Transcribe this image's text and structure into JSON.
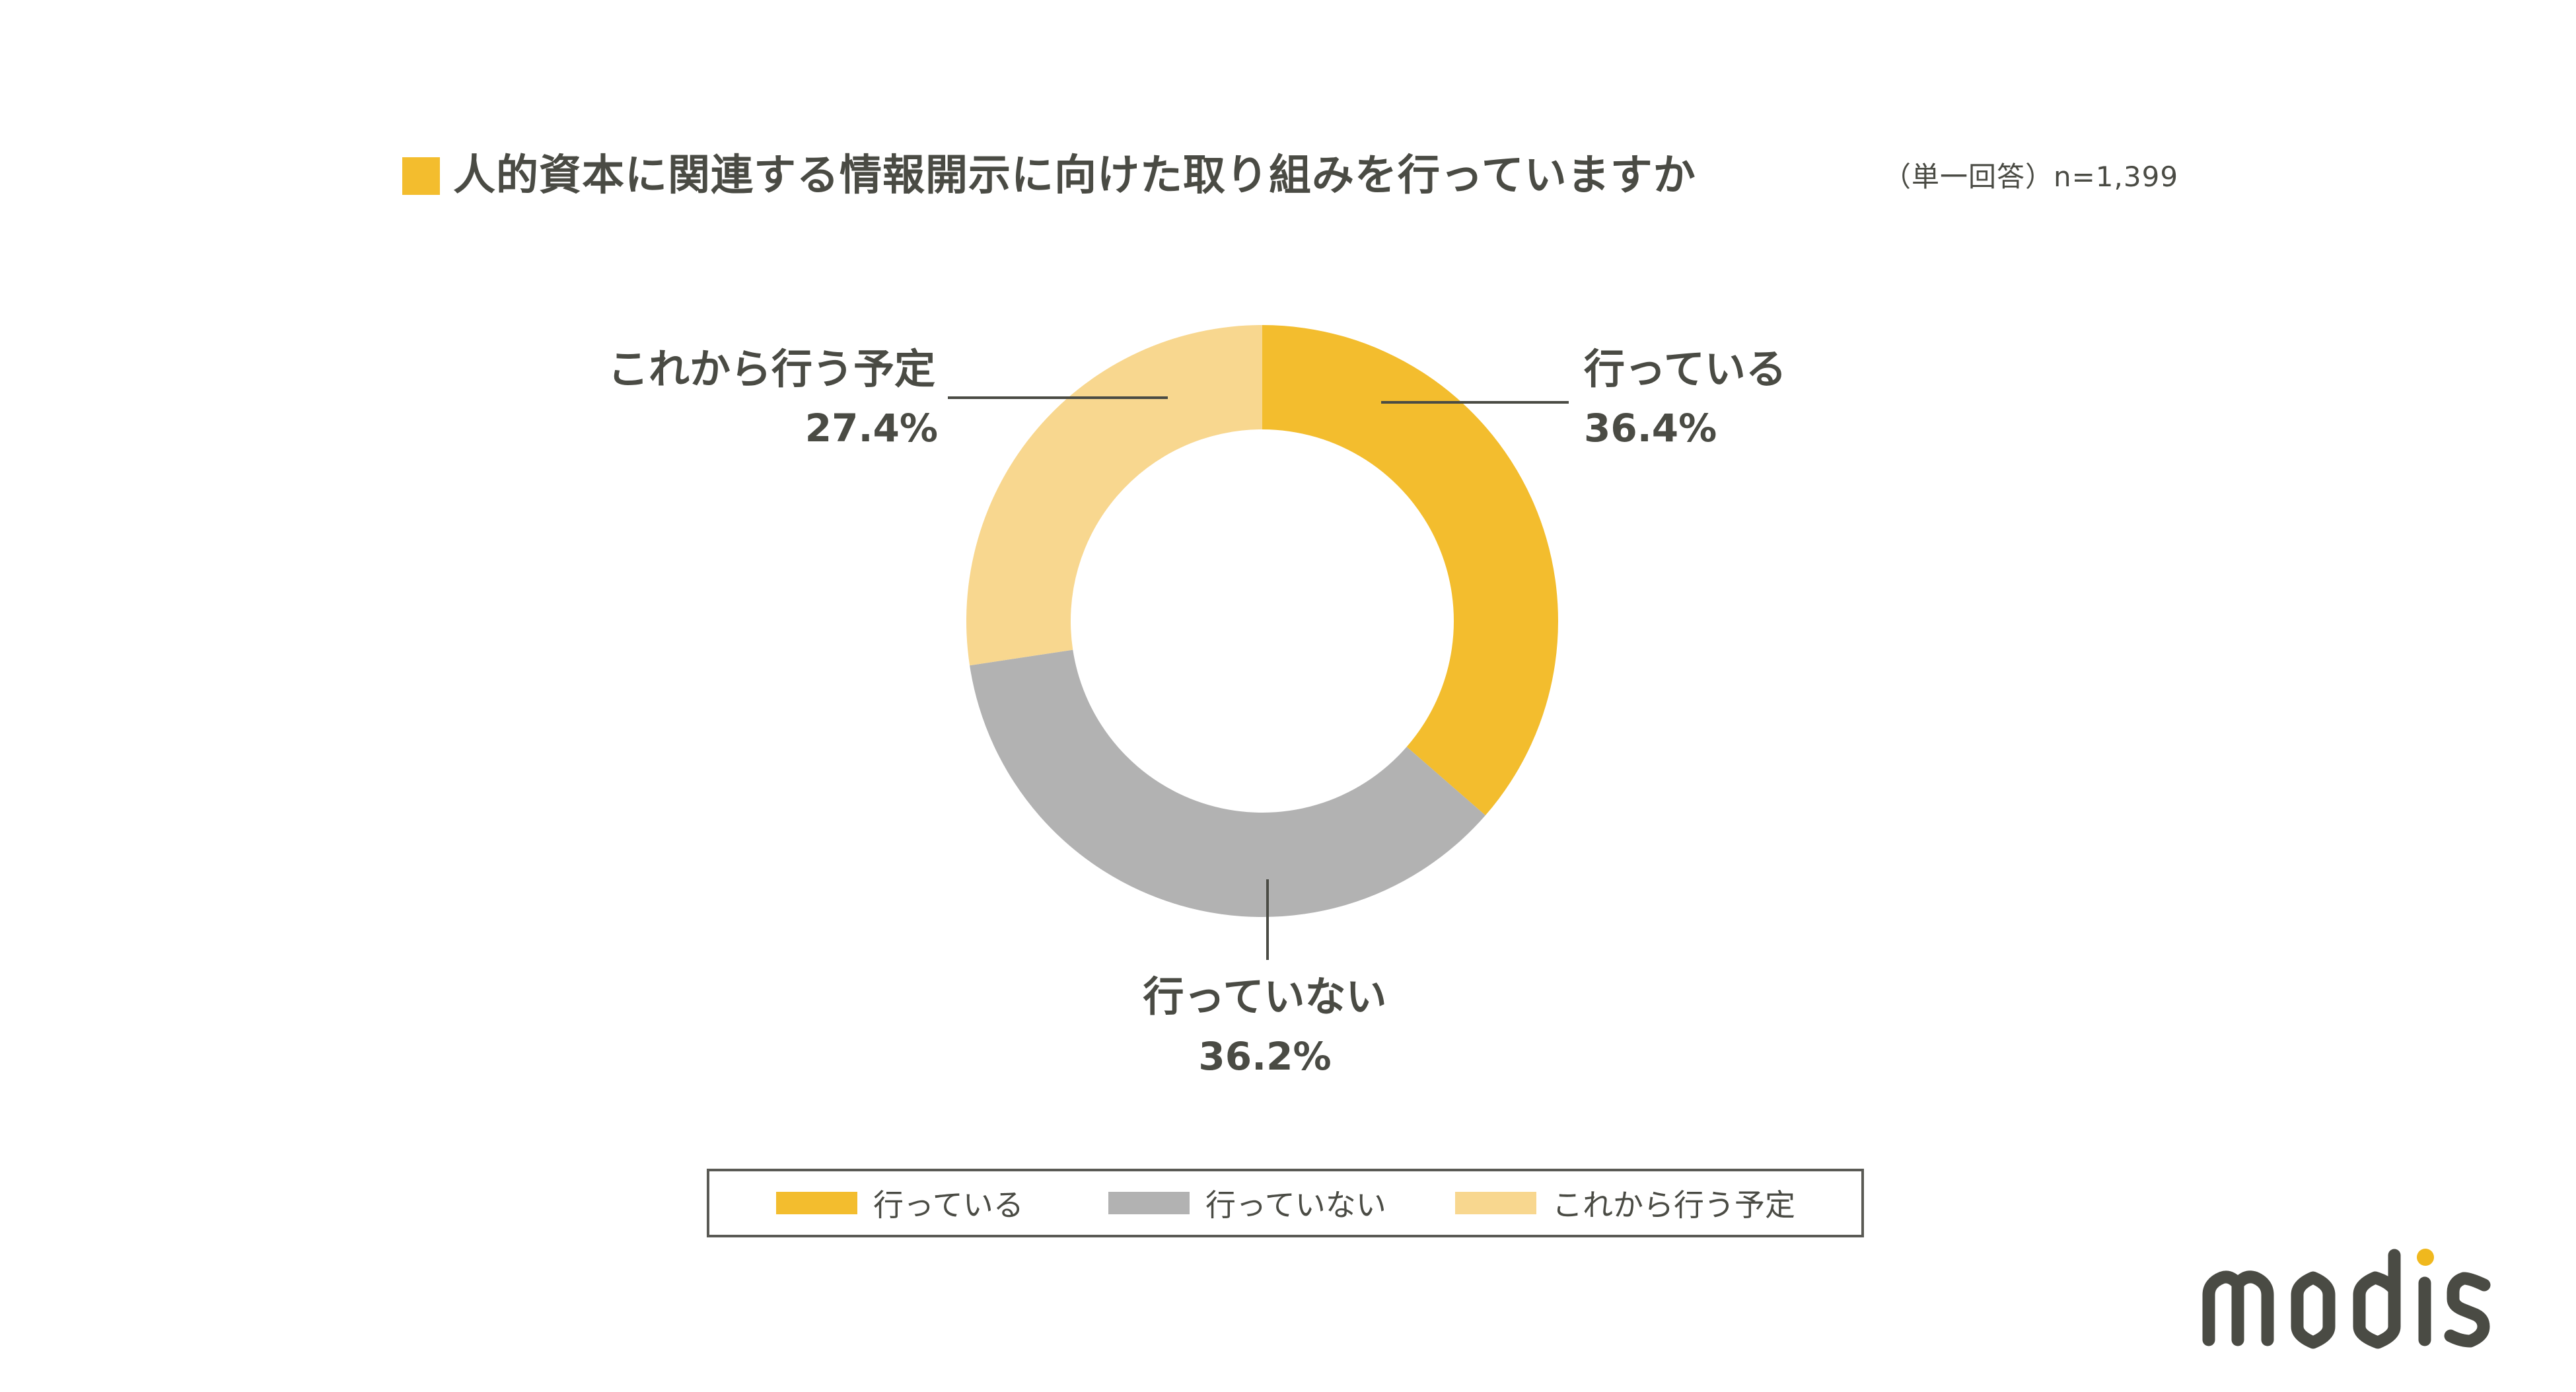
{
  "header": {
    "title": "人的資本に関連する情報開示に向けた取り組みを行っていますか",
    "subtitle": "（単一回答）n=1,399",
    "title_marker_color": "#F3BD2E"
  },
  "chart_data": {
    "type": "pie",
    "variant": "donut",
    "title": "人的資本に関連する情報開示に向けた取り組みを行っていますか",
    "subtitle": "（単一回答）n=1,399",
    "n": 1399,
    "unit": "%",
    "categories": [
      "行っている",
      "行っていない",
      "これから行う予定"
    ],
    "values": [
      36.4,
      36.2,
      27.4
    ],
    "colors": [
      "#F3BD2E",
      "#B2B2B2",
      "#F8D78F"
    ],
    "start_angle_deg": 0,
    "direction": "clockwise",
    "legend_position": "bottom",
    "data_labels": [
      {
        "label": "行っている",
        "value": "36.4%"
      },
      {
        "label": "行っていない",
        "value": "36.2%"
      },
      {
        "label": "これから行う予定",
        "value": "27.4%"
      }
    ]
  },
  "callouts": {
    "doing": {
      "label": "行っている",
      "pct": "36.4%"
    },
    "not_doing": {
      "label": "行っていない",
      "pct": "36.2%"
    },
    "planned": {
      "label": "これから行う予定",
      "pct": "27.4%"
    }
  },
  "legend": {
    "items": [
      {
        "label": "行っている",
        "color": "#F3BD2E"
      },
      {
        "label": "行っていない",
        "color": "#B2B2B2"
      },
      {
        "label": "これから行う予定",
        "color": "#F8D78F"
      }
    ]
  },
  "brand": {
    "logo_text": "modis",
    "logo_color": "#4A4B44",
    "logo_dot_color": "#F0B81E"
  }
}
